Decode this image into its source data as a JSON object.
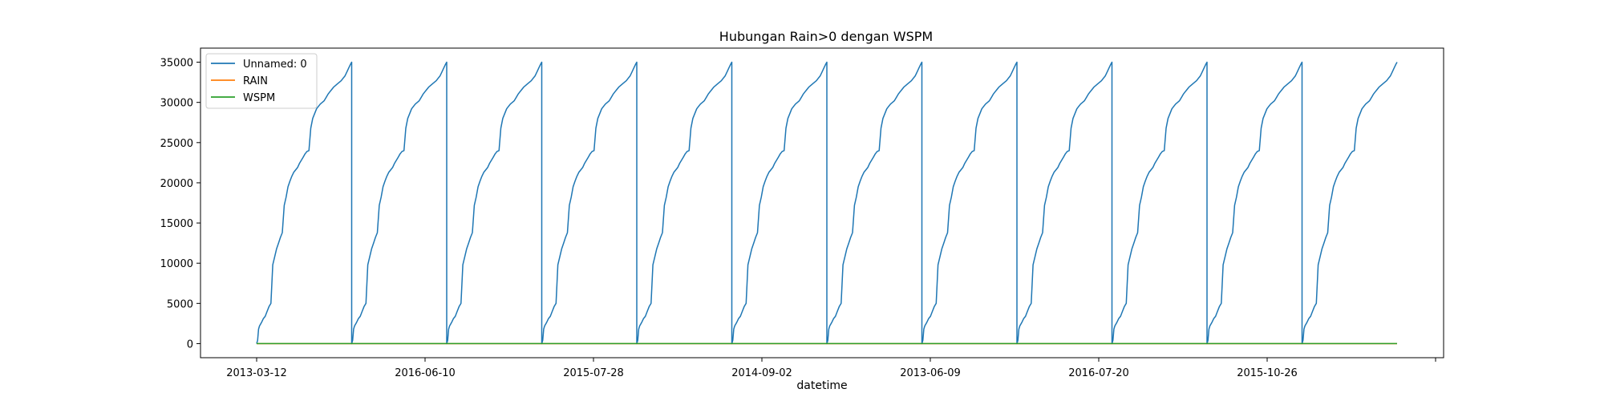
{
  "chart_data": {
    "type": "line",
    "title": "Hubungan Rain>0 dengan WSPM",
    "xlabel": "datetime",
    "ylabel": "",
    "x_tick_labels": [
      "2013-03-12",
      "2016-06-10",
      "2015-07-28",
      "2014-09-02",
      "2013-06-09",
      "2016-07-20",
      "2015-10-26",
      ""
    ],
    "ylim": [
      -1750,
      36750
    ],
    "y_ticks": [
      0,
      5000,
      10000,
      15000,
      20000,
      25000,
      30000,
      35000
    ],
    "y_tick_labels": [
      "0",
      "5000",
      "10000",
      "15000",
      "20000",
      "25000",
      "30000",
      "35000"
    ],
    "grid": false,
    "legend": "upper-left",
    "cycles": 12,
    "cycle_profile": {
      "x": [
        0,
        0.01,
        0.02,
        0.03,
        0.05,
        0.07,
        0.09,
        0.11,
        0.13,
        0.15,
        0.17,
        0.19,
        0.21,
        0.23,
        0.25,
        0.27,
        0.29,
        0.31,
        0.33,
        0.35,
        0.37,
        0.39,
        0.41,
        0.43,
        0.45,
        0.47,
        0.49,
        0.51,
        0.53,
        0.55,
        0.57,
        0.59,
        0.61,
        0.63,
        0.65,
        0.67,
        0.69,
        0.71,
        0.73,
        0.75,
        0.77,
        0.79,
        0.81,
        0.83,
        0.85,
        0.87,
        0.89,
        0.91,
        0.93,
        0.95,
        0.97,
        0.99,
        1.0
      ],
      "y": [
        0,
        400,
        1800,
        2200,
        2600,
        3100,
        3400,
        4000,
        4600,
        5000,
        9800,
        10800,
        11800,
        12500,
        13200,
        13800,
        17200,
        18200,
        19500,
        20200,
        20800,
        21300,
        21600,
        21900,
        22400,
        22800,
        23200,
        23600,
        23900,
        24000,
        26800,
        28000,
        28600,
        29200,
        29500,
        29800,
        30000,
        30200,
        30600,
        31000,
        31300,
        31600,
        31900,
        32100,
        32300,
        32500,
        32700,
        33000,
        33300,
        33800,
        34300,
        34800,
        35000
      ]
    },
    "series": [
      {
        "name": "Unnamed: 0",
        "color": "#1f77b4",
        "pattern": "repeating cumulative index, 0 to 35000 per cycle"
      },
      {
        "name": "RAIN",
        "color": "#ff7f0e",
        "values": [
          0
        ]
      },
      {
        "name": "WSPM",
        "color": "#2ca02c",
        "values": [
          2
        ]
      }
    ]
  }
}
